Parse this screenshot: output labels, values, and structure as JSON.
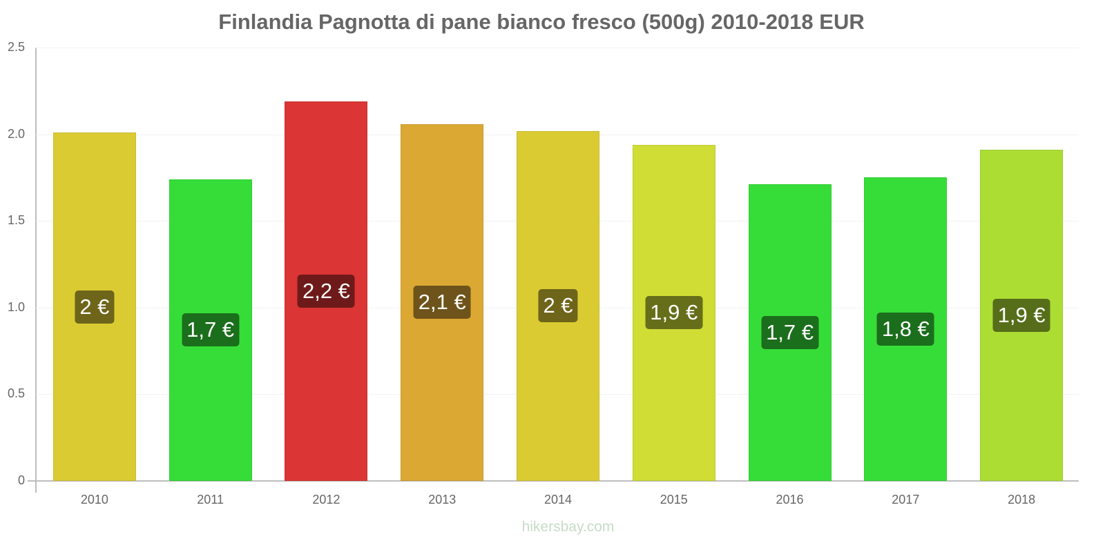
{
  "chart_data": {
    "type": "bar",
    "title": "Finlandia Pagnotta di pane bianco fresco (500g) 2010-2018 EUR",
    "xlabel": "",
    "ylabel": "",
    "ylim": [
      0,
      2.5
    ],
    "yticks": [
      "0",
      "0.5",
      "1.0",
      "1.5",
      "2.0",
      "2.5"
    ],
    "grid": true,
    "legend": null,
    "categories": [
      "2010",
      "2011",
      "2012",
      "2013",
      "2014",
      "2015",
      "2016",
      "2017",
      "2018"
    ],
    "values": [
      2.01,
      1.74,
      2.19,
      2.06,
      2.02,
      1.94,
      1.71,
      1.75,
      1.91
    ],
    "data_labels": [
      "2 €",
      "1,7 €",
      "2,2 €",
      "2,1 €",
      "2 €",
      "1,9 €",
      "1,7 €",
      "1,8 €",
      "1,9 €"
    ],
    "bar_colors": [
      "#dbcb33",
      "#36dd38",
      "#db3535",
      "#dba833",
      "#dbcb33",
      "#cfdd35",
      "#36dd38",
      "#36dd38",
      "#acdd33"
    ],
    "label_colors": [
      "#6e651a",
      "#1b6e1c",
      "#6e1a1a",
      "#6e541a",
      "#6e651a",
      "#676e1a",
      "#1b6e1c",
      "#1b6e1c",
      "#566e1a"
    ]
  },
  "watermark": "hikersbay.com"
}
